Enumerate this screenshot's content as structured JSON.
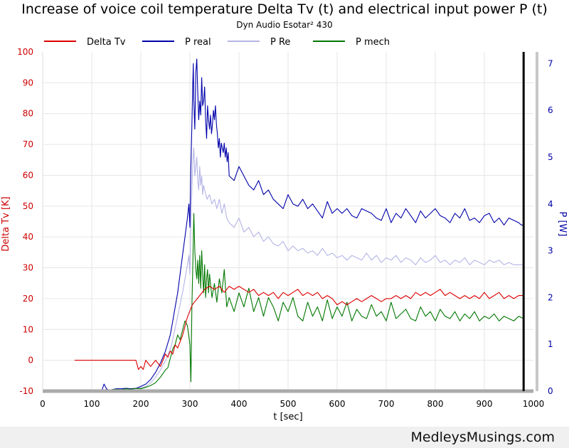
{
  "chart_data": {
    "type": "line",
    "title": "Increase of voice coil temperature Delta Tv (t) and electrical input power P (t)",
    "subtitle": "Dyn Audio Esotar² 430",
    "xlabel": "t [sec]",
    "ylabel_left": "Delta Tv [K]",
    "ylabel_right": "P [W]",
    "xlim": [
      0,
      1000
    ],
    "ylim_left": [
      -10,
      100
    ],
    "ylim_right": [
      0,
      7.25
    ],
    "x_ticks": [
      0,
      100,
      200,
      300,
      400,
      500,
      600,
      700,
      800,
      900,
      1000
    ],
    "y_left_ticks": [
      -10,
      0,
      10,
      20,
      30,
      40,
      50,
      60,
      70,
      80,
      90,
      100
    ],
    "y_right_ticks": [
      0,
      1,
      2,
      3,
      4,
      5,
      6,
      7
    ],
    "grid": true,
    "legend": "top",
    "marker_x": 980,
    "colors": {
      "delta_tv": "#dd0000",
      "p_real": "#0000aa",
      "p_re": "#b4b4e6",
      "p_mech": "#007700",
      "left_axis": "#cc0000",
      "right_axis": "#0000aa"
    },
    "series": [
      {
        "name": "Delta Tv",
        "axis": "left",
        "x": [
          65,
          190,
          195,
          200,
          205,
          210,
          215,
          220,
          225,
          230,
          240,
          250,
          255,
          260,
          265,
          270,
          275,
          280,
          285,
          290,
          295,
          300,
          305,
          310,
          315,
          320,
          330,
          340,
          350,
          360,
          370,
          380,
          390,
          400,
          410,
          420,
          430,
          440,
          450,
          460,
          470,
          480,
          490,
          500,
          510,
          520,
          530,
          540,
          550,
          560,
          570,
          580,
          590,
          600,
          610,
          620,
          630,
          640,
          650,
          660,
          670,
          680,
          690,
          700,
          710,
          720,
          730,
          740,
          750,
          760,
          770,
          780,
          790,
          800,
          810,
          820,
          830,
          840,
          850,
          860,
          870,
          880,
          890,
          900,
          910,
          920,
          930,
          940,
          950,
          960,
          970,
          980
        ],
        "y": [
          0,
          0,
          -3,
          -2,
          -3,
          0,
          -1,
          -2,
          -1,
          0,
          -2,
          2,
          1,
          3,
          2,
          5,
          4,
          6,
          8,
          11,
          14,
          16,
          18,
          19,
          20,
          21,
          23,
          24,
          23,
          24,
          22,
          24,
          23,
          24,
          23,
          22,
          23,
          21,
          22,
          21,
          22,
          20,
          22,
          21,
          22,
          23,
          21,
          22,
          21,
          22,
          20,
          21,
          20,
          18,
          19,
          18,
          19,
          20,
          19,
          20,
          21,
          20,
          19,
          20,
          20,
          21,
          20,
          21,
          20,
          22,
          21,
          22,
          21,
          22,
          23,
          21,
          22,
          21,
          20,
          21,
          20,
          21,
          20,
          22,
          20,
          21,
          22,
          20,
          21,
          20,
          21,
          21
        ]
      },
      {
        "name": "P real",
        "axis": "right",
        "x": [
          0,
          120,
          125,
          130,
          135,
          140,
          150,
          160,
          170,
          180,
          190,
          200,
          210,
          220,
          230,
          240,
          250,
          260,
          265,
          270,
          275,
          280,
          285,
          290,
          295,
          298,
          300,
          302,
          304,
          306,
          307,
          308,
          310,
          312,
          314,
          316,
          318,
          320,
          322,
          324,
          326,
          328,
          330,
          332,
          334,
          336,
          338,
          340,
          342,
          344,
          346,
          348,
          350,
          352,
          354,
          356,
          358,
          360,
          362,
          364,
          366,
          368,
          370,
          372,
          374,
          376,
          378,
          380,
          390,
          400,
          410,
          420,
          430,
          440,
          450,
          460,
          470,
          480,
          490,
          500,
          510,
          520,
          530,
          540,
          550,
          560,
          570,
          580,
          590,
          600,
          610,
          620,
          630,
          640,
          650,
          660,
          670,
          680,
          690,
          700,
          710,
          720,
          730,
          740,
          750,
          760,
          770,
          780,
          790,
          800,
          810,
          820,
          830,
          840,
          850,
          860,
          870,
          880,
          890,
          900,
          910,
          920,
          930,
          940,
          950,
          960,
          970,
          975,
          980
        ],
        "y": [
          0,
          0,
          0.15,
          0.05,
          0.02,
          0.03,
          0.05,
          0.05,
          0.06,
          0.05,
          0.06,
          0.1,
          0.15,
          0.25,
          0.4,
          0.6,
          0.85,
          1.2,
          1.5,
          1.8,
          2.1,
          2.5,
          2.9,
          3.3,
          3.7,
          4.0,
          3.5,
          4.8,
          5.7,
          6.6,
          7.0,
          6.2,
          5.6,
          6.8,
          7.1,
          6.4,
          5.8,
          6.2,
          5.9,
          6.7,
          6.1,
          6.2,
          6.5,
          5.8,
          5.4,
          6.1,
          5.8,
          5.6,
          5.9,
          5.5,
          5.7,
          6.0,
          5.8,
          6.1,
          5.7,
          5.5,
          5.2,
          5.4,
          5.0,
          5.3,
          5.2,
          5.1,
          5.3,
          5.0,
          5.2,
          4.9,
          5.1,
          4.6,
          4.5,
          4.8,
          4.6,
          4.4,
          4.3,
          4.5,
          4.2,
          4.3,
          4.1,
          4.0,
          3.9,
          4.2,
          4.0,
          3.95,
          4.1,
          3.9,
          4.0,
          3.85,
          3.7,
          4.05,
          3.8,
          3.9,
          3.8,
          3.9,
          3.75,
          3.7,
          3.9,
          3.85,
          3.8,
          3.7,
          3.65,
          3.9,
          3.6,
          3.8,
          3.7,
          3.9,
          3.75,
          3.6,
          3.85,
          3.7,
          3.8,
          3.9,
          3.75,
          3.7,
          3.6,
          3.8,
          3.7,
          3.9,
          3.65,
          3.7,
          3.6,
          3.75,
          3.8,
          3.6,
          3.7,
          3.55,
          3.7,
          3.65,
          3.6,
          3.55,
          3.55
        ]
      },
      {
        "name": "P Re",
        "axis": "right",
        "x": [
          0,
          125,
          130,
          135,
          140,
          150,
          160,
          170,
          180,
          190,
          200,
          210,
          220,
          230,
          240,
          250,
          260,
          265,
          270,
          275,
          280,
          285,
          290,
          295,
          298,
          300,
          302,
          304,
          306,
          308,
          310,
          312,
          314,
          316,
          318,
          320,
          322,
          324,
          326,
          328,
          330,
          335,
          340,
          345,
          350,
          355,
          360,
          365,
          370,
          375,
          380,
          390,
          400,
          410,
          420,
          430,
          440,
          450,
          460,
          470,
          480,
          490,
          500,
          510,
          520,
          530,
          540,
          550,
          560,
          570,
          580,
          590,
          600,
          610,
          620,
          630,
          640,
          650,
          660,
          670,
          680,
          690,
          700,
          710,
          720,
          730,
          740,
          750,
          760,
          770,
          780,
          790,
          800,
          810,
          820,
          830,
          840,
          850,
          860,
          870,
          880,
          890,
          900,
          910,
          920,
          930,
          940,
          950,
          960,
          970,
          980
        ],
        "y": [
          0,
          0,
          0.04,
          0.02,
          0.03,
          0.04,
          0.04,
          0.05,
          0.05,
          0.05,
          0.07,
          0.1,
          0.18,
          0.3,
          0.45,
          0.65,
          0.9,
          1.1,
          1.35,
          1.6,
          1.85,
          2.1,
          2.4,
          2.7,
          2.9,
          2.5,
          3.6,
          4.3,
          4.9,
          5.2,
          4.6,
          4.8,
          5.0,
          4.5,
          4.3,
          4.8,
          4.4,
          4.6,
          4.2,
          4.4,
          4.3,
          4.1,
          4.2,
          4.0,
          4.1,
          3.9,
          4.1,
          3.8,
          4.0,
          3.7,
          3.6,
          3.5,
          3.7,
          3.4,
          3.5,
          3.3,
          3.4,
          3.2,
          3.3,
          3.15,
          3.1,
          3.2,
          3.0,
          3.1,
          3.0,
          3.05,
          2.95,
          3.0,
          2.9,
          3.05,
          2.9,
          2.95,
          2.85,
          2.9,
          2.8,
          2.9,
          2.85,
          2.8,
          2.95,
          2.8,
          2.9,
          2.75,
          2.85,
          2.8,
          2.9,
          2.75,
          2.85,
          2.8,
          2.7,
          2.85,
          2.75,
          2.8,
          2.9,
          2.75,
          2.8,
          2.7,
          2.8,
          2.75,
          2.85,
          2.7,
          2.8,
          2.75,
          2.7,
          2.8,
          2.75,
          2.8,
          2.7,
          2.75,
          2.7,
          2.7,
          2.7
        ]
      },
      {
        "name": "P mech",
        "axis": "right",
        "x": [
          135,
          140,
          150,
          160,
          170,
          180,
          190,
          200,
          210,
          220,
          230,
          240,
          250,
          255,
          260,
          265,
          270,
          275,
          280,
          285,
          290,
          295,
          300,
          302,
          304,
          306,
          308,
          310,
          312,
          314,
          316,
          318,
          320,
          322,
          324,
          326,
          328,
          330,
          332,
          334,
          336,
          338,
          340,
          345,
          350,
          355,
          360,
          365,
          370,
          375,
          380,
          390,
          400,
          410,
          420,
          430,
          440,
          450,
          460,
          470,
          480,
          490,
          500,
          510,
          520,
          530,
          540,
          550,
          560,
          570,
          580,
          590,
          600,
          610,
          620,
          630,
          640,
          650,
          660,
          670,
          680,
          690,
          700,
          710,
          720,
          730,
          740,
          750,
          760,
          770,
          780,
          790,
          800,
          810,
          820,
          830,
          840,
          850,
          860,
          870,
          880,
          890,
          900,
          910,
          920,
          930,
          940,
          950,
          960,
          970,
          980
        ],
        "y": [
          0.02,
          0.03,
          0.04,
          0.03,
          0.05,
          0.04,
          0.06,
          0.05,
          0.08,
          0.12,
          0.18,
          0.3,
          0.45,
          0.5,
          0.7,
          0.9,
          1.0,
          1.2,
          1.1,
          1.3,
          1.5,
          1.4,
          1.0,
          0.2,
          1.8,
          2.7,
          3.8,
          3.0,
          2.6,
          2.4,
          2.8,
          2.3,
          2.9,
          2.2,
          3.0,
          2.5,
          2.1,
          2.7,
          2.0,
          2.4,
          2.6,
          2.1,
          2.5,
          2.0,
          2.3,
          1.9,
          2.4,
          2.1,
          2.6,
          1.8,
          2.0,
          1.7,
          2.1,
          1.8,
          2.2,
          1.7,
          2.0,
          1.6,
          2.0,
          1.8,
          1.5,
          1.9,
          1.7,
          2.0,
          1.6,
          1.5,
          1.9,
          1.6,
          1.8,
          1.5,
          1.95,
          1.55,
          1.8,
          1.6,
          1.9,
          1.5,
          1.75,
          1.6,
          1.55,
          1.85,
          1.6,
          1.7,
          1.5,
          1.9,
          1.55,
          1.65,
          1.75,
          1.55,
          1.5,
          1.8,
          1.6,
          1.7,
          1.5,
          1.75,
          1.6,
          1.55,
          1.7,
          1.5,
          1.65,
          1.55,
          1.7,
          1.5,
          1.6,
          1.55,
          1.65,
          1.5,
          1.6,
          1.55,
          1.5,
          1.6,
          1.55
        ]
      }
    ]
  },
  "footer": {
    "credit": "MedleysMusings.com"
  }
}
